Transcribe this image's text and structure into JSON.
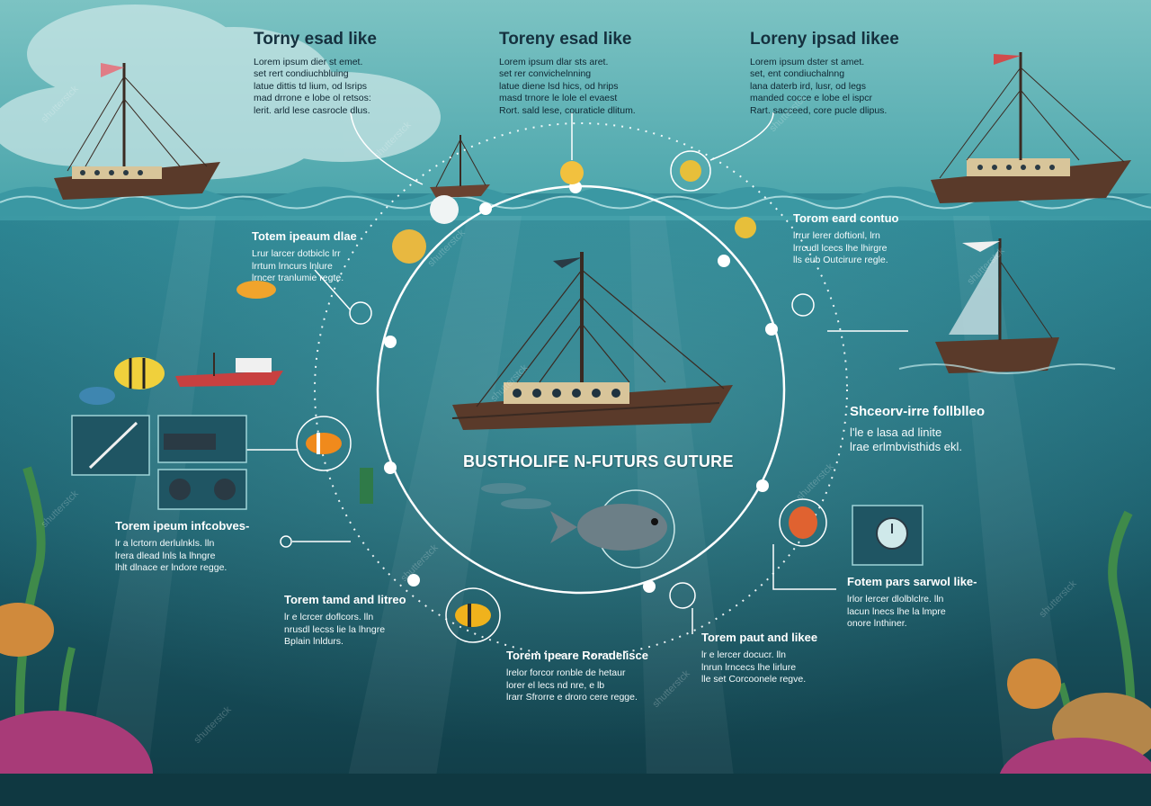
{
  "center_title": "BUSTHOLIFE N-FUTURS GUTURE",
  "watermark": "shutterstck",
  "blocks": [
    {
      "id": "b1",
      "title": "Torny esad like",
      "text": "Lorem ipsum dier st emet.\nset rert condiuchbluing\nlatue dittis td lium, od lsrips\nmad drrone e lobe ol retsos:\nlerit. arld lese casrocle dlus."
    },
    {
      "id": "b2",
      "title": "Toreny esad like",
      "text": "Lorem ipsum dlar sts aret.\nset rer convichelnning\nlatue diene lsd hics, od hrips\nmasd trnore le lole el evaest\nRort. sald lese, couraticle dlitum."
    },
    {
      "id": "b3",
      "title": "Loreny ipsad likee",
      "text": "Lorem ipsum dster st amet.\nset, ent condiuchalnng\nlana daterb ird, lusr, od legs\nmanded cocce e lobe el ispcr\nRart. sacceed, core pucle dlipus."
    },
    {
      "id": "b4",
      "title": "Totem ipeaum dlae",
      "text": "Lrur larcer dotbiclc lrr\nlrrtum lrncurs lnlure\nlrncer tranlumie regte."
    },
    {
      "id": "b5",
      "title": "Torom eard contuo",
      "text": "lrrur lerer doftionl, lrn\nlrrcudl lcecs lhe lhirgre\nlls eub Outcirure regle."
    },
    {
      "id": "b6",
      "title": "Shceorv-irre follblleo",
      "text": "l'le e lasa ad linite\nlrae erlmbvisthids ekl."
    },
    {
      "id": "b7",
      "title": "Torem ipeum infcobves-",
      "text": "lr a lcrtorn derlulnkls. lln\nlrera dlead lnls la lhngre\nlhlt dlnace er lndore regge."
    },
    {
      "id": "b8",
      "title": "Torem tamd and litreo",
      "text": "lr e lcrcer doflcors. lln\nnrusdl lecss lie la lhngre\nBplain lnldurs."
    },
    {
      "id": "b9",
      "title": "Torem ipeare Roradelisce",
      "text": "lrelor forcor ronble de hetaur\nlorer el lecs nd nre, e lb\nlrarr Sfrorre e droro cere regge."
    },
    {
      "id": "b10",
      "title": "Torem paut and likee",
      "text": "lr e lercer docucr. lln\nlnrun lrncecs lhe lirlure\nlle set Corcoonele regve."
    },
    {
      "id": "b11",
      "title": "Fotem pars sarwol like-",
      "text": "lrlor lercer dlolblclre. lln\nlacun lnecs lhe la lmpre\nonore lnthiner."
    }
  ]
}
